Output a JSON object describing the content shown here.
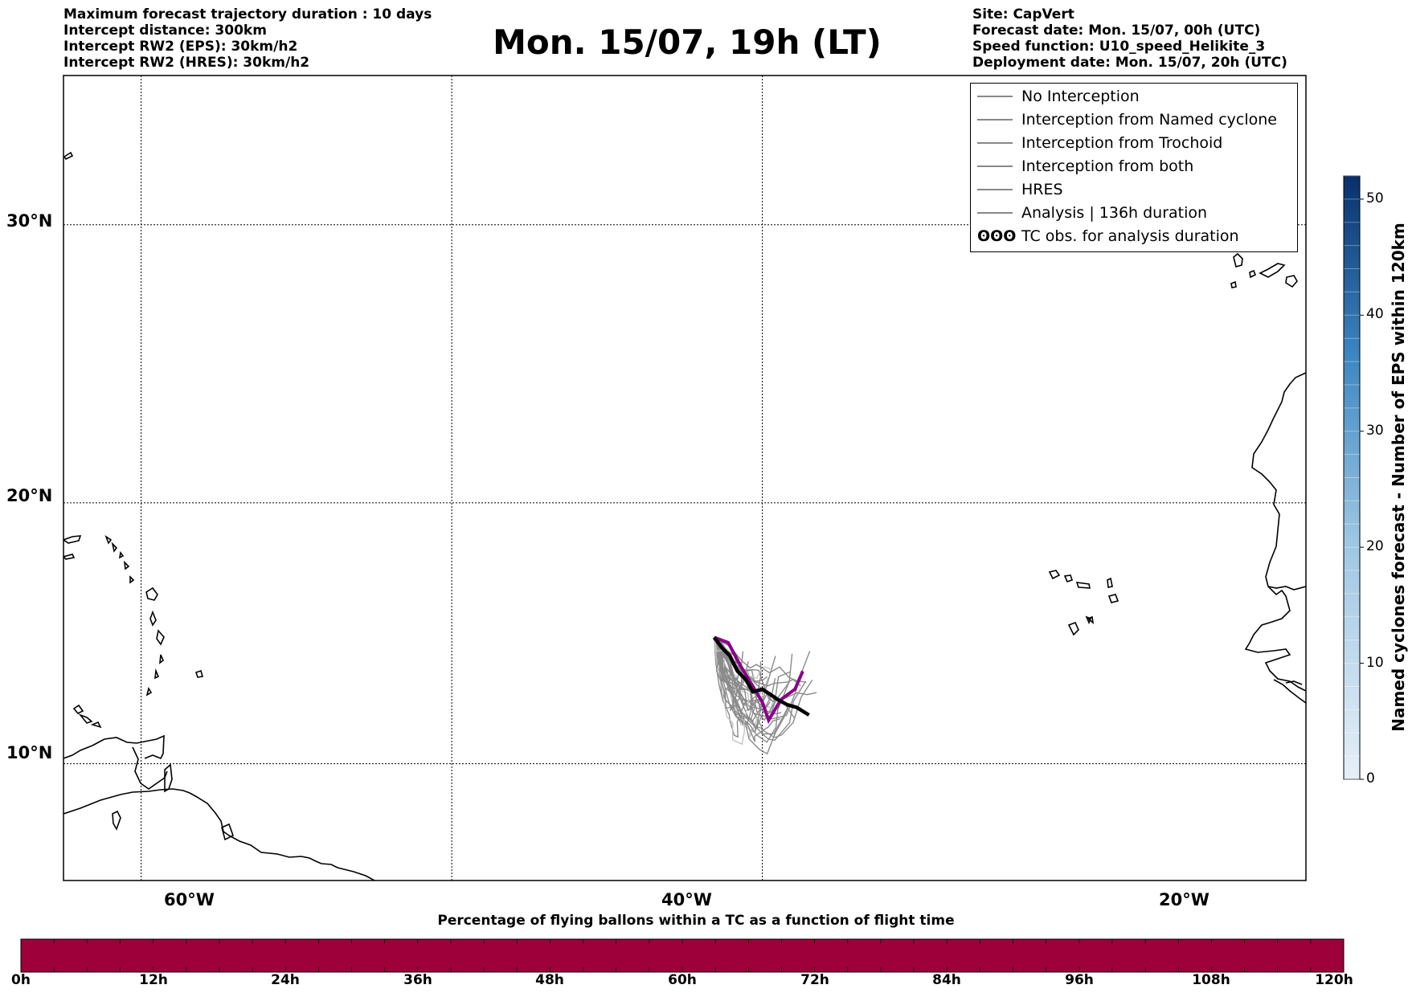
{
  "header": {
    "title": "Mon. 15/07, 19h (LT)",
    "left_info": [
      "Maximum forecast trajectory duration : 10 days",
      "Intercept distance: 300km",
      "Intercept RW2 (EPS):  30km/h2",
      "Intercept RW2 (HRES): 30km/h2"
    ],
    "right_info": [
      "Site: CapVert",
      "Forecast date: Mon. 15/07, 00h (UTC)",
      "Speed function: U10_speed_Helikite_3",
      "Deployment date: Mon. 15/07, 20h (UTC)"
    ]
  },
  "map": {
    "lon_range": [
      -65,
      15
    ],
    "lat_range": [
      5.4,
      35
    ],
    "lat_labels": [
      "30°N",
      "20°N",
      "10°N"
    ],
    "lat_values": [
      30,
      20,
      10
    ],
    "lon_labels": [
      "60°W",
      "40°W",
      "20°W"
    ],
    "lon_values": [
      -60,
      -40,
      -20
    ],
    "grid": "dotted"
  },
  "legend": {
    "placement": "top-right",
    "items": [
      {
        "label": "No Interception",
        "color": "#808080",
        "style": "thin"
      },
      {
        "label": "Interception from Named cyclone",
        "color": "#ff7f50",
        "style": "thin"
      },
      {
        "label": "Interception from Trochoid",
        "color": "#9a8a3a",
        "style": "thin"
      },
      {
        "label": "Interception from both",
        "color": "#2ca02c",
        "style": "thin"
      },
      {
        "label": "HRES",
        "color": "#8b008b",
        "style": "thick"
      },
      {
        "label": "Analysis | 136h duration",
        "color": "#000000",
        "style": "thick"
      },
      {
        "label": "TC obs. for analysis duration",
        "color": "#000000",
        "style": "symbol",
        "symbol": "ʘʘʘ"
      }
    ]
  },
  "trajectories": {
    "start": [
      -23.1,
      14.9
    ],
    "hres": [
      [
        -23.1,
        14.9
      ],
      [
        -22.2,
        14.7
      ],
      [
        -21.4,
        13.8
      ],
      [
        -20.8,
        13.2
      ],
      [
        -20.0,
        12.4
      ],
      [
        -19.6,
        11.7
      ],
      [
        -18.8,
        12.5
      ],
      [
        -17.9,
        12.9
      ],
      [
        -17.4,
        13.6
      ]
    ],
    "analysis": [
      [
        -23.1,
        14.9
      ],
      [
        -22.6,
        14.5
      ],
      [
        -22.1,
        14.2
      ],
      [
        -21.6,
        13.6
      ],
      [
        -21.1,
        13.3
      ],
      [
        -20.6,
        12.8
      ],
      [
        -20.0,
        12.9
      ],
      [
        -19.5,
        12.7
      ],
      [
        -19.0,
        12.5
      ],
      [
        -18.4,
        12.3
      ],
      [
        -17.8,
        12.2
      ],
      [
        -17.0,
        11.9
      ]
    ],
    "ensemble_color": "#777777"
  },
  "colorbar_right": {
    "title": "Named cyclones forecast - Number of EPS within 120km",
    "min": 0,
    "max": 52,
    "tick_labels": [
      "0",
      "10",
      "20",
      "30",
      "40",
      "50"
    ],
    "tick_values": [
      0,
      10,
      20,
      30,
      40,
      50
    ],
    "color_low": "#e6eff8",
    "color_high": "#08306b"
  },
  "colorbar_bottom": {
    "title": "Percentage of flying ballons within a TC as a function of flight time",
    "color": "#9e003a",
    "tick_labels": [
      "0h",
      "12h",
      "24h",
      "36h",
      "48h",
      "60h",
      "72h",
      "84h",
      "96h",
      "108h",
      "120h"
    ]
  }
}
